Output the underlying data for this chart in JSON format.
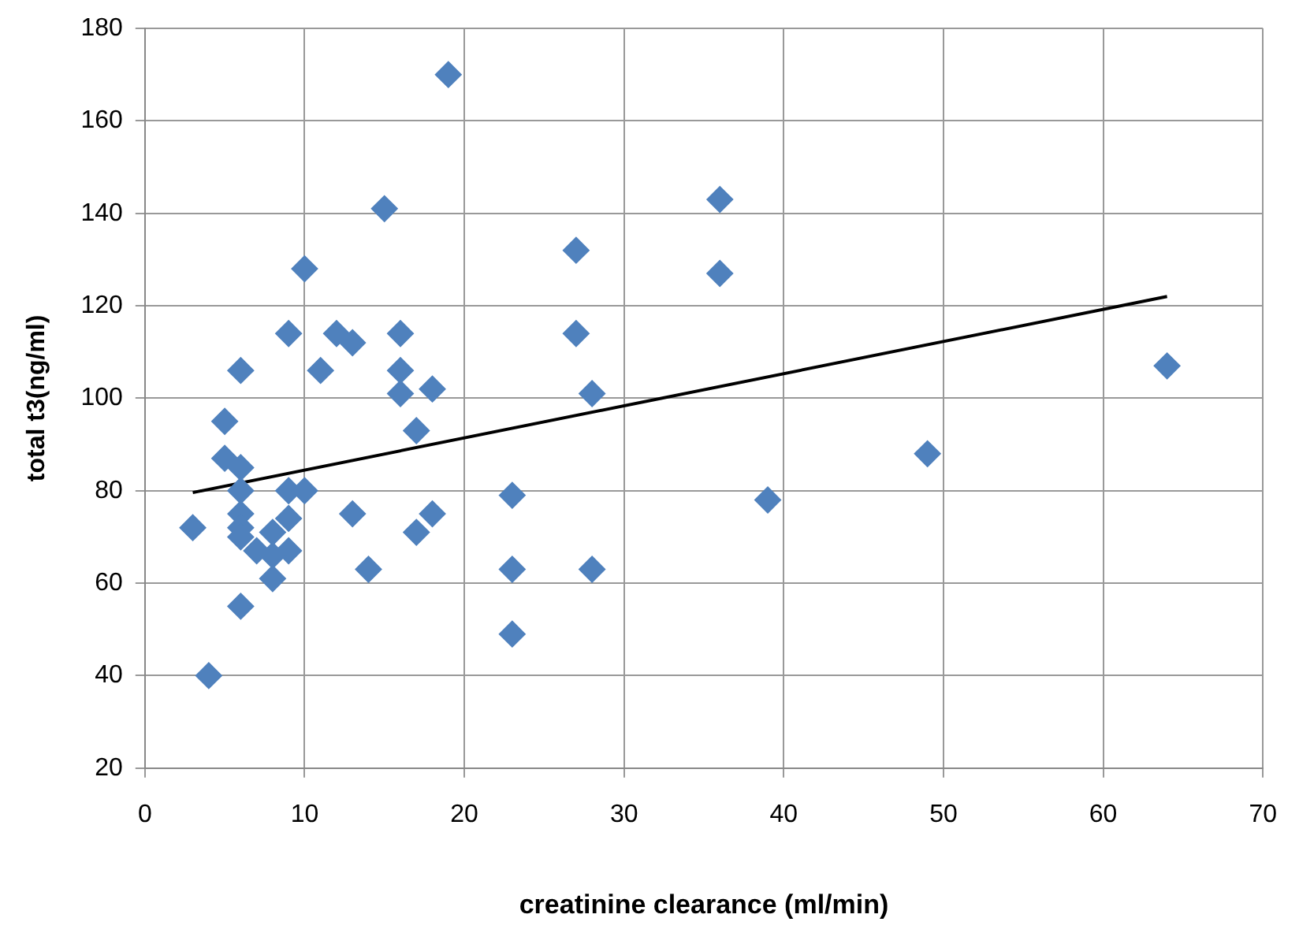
{
  "chart_data": {
    "type": "scatter",
    "xlabel": "creatinine clearance (ml/min)",
    "ylabel": "total t3(ng/ml)",
    "xlim": [
      0,
      70
    ],
    "xticks": [
      0,
      10,
      20,
      30,
      40,
      50,
      60,
      70
    ],
    "ylim": [
      20,
      180
    ],
    "yticks": [
      20,
      40,
      60,
      80,
      100,
      120,
      140,
      160,
      180
    ],
    "grid": true,
    "legend": false,
    "series": [
      {
        "color": "#4f81bd",
        "marker": "diamond",
        "x": [
          19,
          15,
          27,
          10,
          9,
          12,
          13,
          16,
          27,
          6,
          11,
          16,
          16,
          18,
          28,
          5,
          5,
          6,
          3,
          6,
          6,
          6,
          6,
          7,
          8,
          9,
          9,
          10,
          9,
          8,
          8,
          6,
          4,
          13,
          14,
          17,
          18,
          17,
          23,
          23,
          23,
          28,
          36,
          36,
          39,
          49,
          64
        ],
        "values": [
          170,
          141,
          132,
          128,
          114,
          114,
          112,
          114,
          114,
          106,
          106,
          106,
          101,
          102,
          101,
          95,
          87,
          85,
          72,
          80,
          75,
          72,
          70,
          67,
          71,
          74,
          80,
          80,
          67,
          66,
          61,
          55,
          40,
          75,
          63,
          71,
          75,
          93,
          79,
          63,
          49,
          63,
          143,
          127,
          78,
          88,
          107
        ]
      },
      {
        "type": "line",
        "color": "#000000",
        "marker": "none",
        "x": [
          3,
          64
        ],
        "values": [
          79.6,
          122
        ]
      }
    ]
  }
}
